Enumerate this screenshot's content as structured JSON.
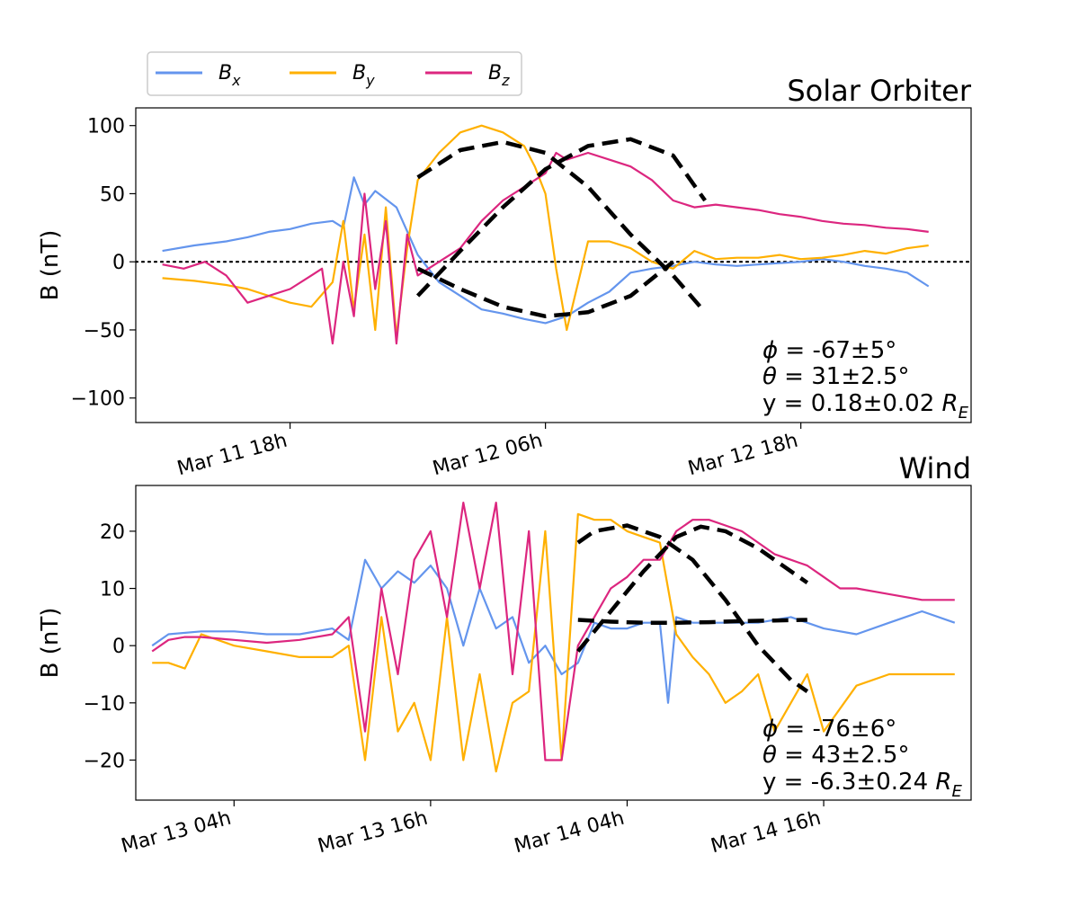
{
  "legend": {
    "items": [
      {
        "label": "Bx",
        "main": "B",
        "sub": "x",
        "color": "#6495ED"
      },
      {
        "label": "By",
        "main": "B",
        "sub": "y",
        "color": "#FFB000"
      },
      {
        "label": "Bz",
        "main": "B",
        "sub": "z",
        "color": "#DC267F"
      }
    ],
    "location": "top-left, above top panel"
  },
  "chart_data": [
    {
      "type": "line",
      "title": "Solar Orbiter",
      "xlabel": "",
      "ylabel": "B (nT)",
      "xlim": [
        10.75,
        50.0
      ],
      "ylim": [
        -118,
        113
      ],
      "x_ticks": [
        {
          "x": 18,
          "label": "Mar 11 18h"
        },
        {
          "x": 30,
          "label": "Mar 12 06h"
        },
        {
          "x": 42,
          "label": "Mar 12 18h"
        }
      ],
      "y_ticks": [
        {
          "y": 100,
          "label": "100"
        },
        {
          "y": 50,
          "label": "50"
        },
        {
          "y": 0,
          "label": "0"
        },
        {
          "y": -50,
          "label": "−50"
        },
        {
          "y": -100,
          "label": "−100"
        }
      ],
      "zero_line": true,
      "series": [
        {
          "name": "Bx",
          "color": "#6495ED",
          "x": [
            12,
            13.5,
            15,
            16,
            17,
            18,
            19,
            20,
            20.5,
            21,
            21.5,
            22,
            23,
            24,
            25,
            26,
            27,
            28,
            29,
            30,
            31,
            32,
            33,
            34,
            35,
            36,
            37,
            38,
            39,
            40,
            41,
            42,
            43,
            44,
            45,
            46,
            47,
            48
          ],
          "y": [
            8,
            12,
            15,
            18,
            22,
            24,
            28,
            30,
            25,
            62,
            42,
            52,
            40,
            5,
            -15,
            -25,
            -35,
            -38,
            -42,
            -45,
            -40,
            -30,
            -22,
            -8,
            -5,
            -3,
            0,
            -2,
            -3,
            -2,
            -1,
            0,
            2,
            0,
            -3,
            -5,
            -8,
            -18
          ]
        },
        {
          "name": "By",
          "color": "#FFB000",
          "x": [
            12,
            13.5,
            15,
            16,
            17,
            18,
            19,
            20,
            20.5,
            21,
            21.5,
            22,
            22.5,
            23,
            23.5,
            24,
            25,
            26,
            27,
            28,
            29,
            29.5,
            30,
            30.5,
            31,
            32,
            33,
            34,
            35,
            36,
            37,
            38,
            39,
            40,
            41,
            42,
            43,
            44,
            45,
            46,
            47,
            48
          ],
          "y": [
            -12,
            -14,
            -17,
            -20,
            -25,
            -30,
            -33,
            -15,
            30,
            -35,
            20,
            -50,
            40,
            -55,
            10,
            60,
            80,
            95,
            100,
            95,
            85,
            70,
            50,
            -5,
            -50,
            15,
            15,
            10,
            0,
            -5,
            8,
            2,
            3,
            3,
            5,
            2,
            3,
            5,
            8,
            6,
            10,
            12
          ]
        },
        {
          "name": "Bz",
          "color": "#DC267F",
          "x": [
            12,
            13,
            14,
            15,
            16,
            17,
            18,
            19,
            19.5,
            20,
            20.5,
            21,
            21.5,
            22,
            22.5,
            23,
            23.5,
            24,
            25,
            26,
            27,
            28,
            29,
            30,
            30.5,
            31,
            32,
            33,
            34,
            35,
            36,
            37,
            38,
            39,
            40,
            41,
            42,
            43,
            44,
            45,
            46,
            47,
            48
          ],
          "y": [
            -2,
            -5,
            0,
            -10,
            -30,
            -25,
            -20,
            -10,
            -5,
            -60,
            0,
            -40,
            50,
            -20,
            30,
            -60,
            20,
            -10,
            0,
            10,
            30,
            45,
            55,
            65,
            80,
            75,
            80,
            75,
            70,
            60,
            45,
            40,
            42,
            40,
            38,
            35,
            33,
            30,
            28,
            27,
            25,
            24,
            22
          ]
        },
        {
          "name": "Bx fit",
          "color": "#000000",
          "dashed": true,
          "x": [
            24,
            26,
            28,
            30,
            32,
            34,
            36
          ],
          "y": [
            -5,
            -20,
            -33,
            -40,
            -37,
            -25,
            0
          ]
        },
        {
          "name": "By fit",
          "color": "#000000",
          "dashed": true,
          "x": [
            24,
            26,
            28,
            30,
            32,
            34,
            36,
            37.5
          ],
          "y": [
            62,
            82,
            88,
            80,
            55,
            20,
            -10,
            -37
          ]
        },
        {
          "name": "Bz fit",
          "color": "#000000",
          "dashed": true,
          "x": [
            24,
            26,
            28,
            30,
            32,
            34,
            36,
            37.5
          ],
          "y": [
            -25,
            8,
            40,
            68,
            85,
            90,
            78,
            45
          ]
        }
      ],
      "annotations": [
        "ϕ = -67±5°",
        "θ = 31±2.5°",
        "y = 0.18±0.02 R_E"
      ]
    },
    {
      "type": "line",
      "title": "Wind",
      "xlabel": "",
      "ylabel": "B (nT)",
      "xlim": [
        -2.0,
        49.0
      ],
      "ylim": [
        -27,
        28
      ],
      "x_ticks": [
        {
          "x": 4,
          "label": "Mar 13 04h"
        },
        {
          "x": 16,
          "label": "Mar 13 16h"
        },
        {
          "x": 28,
          "label": "Mar 14 04h"
        },
        {
          "x": 40,
          "label": "Mar 14 16h"
        }
      ],
      "y_ticks": [
        {
          "y": 20,
          "label": "20"
        },
        {
          "y": 10,
          "label": "10"
        },
        {
          "y": 0,
          "label": "0"
        },
        {
          "y": -10,
          "label": "−10"
        },
        {
          "y": -20,
          "label": "−20"
        }
      ],
      "zero_line": false,
      "series": [
        {
          "name": "Bx",
          "color": "#6495ED",
          "x": [
            -1,
            0,
            2,
            4,
            6,
            8,
            10,
            11,
            12,
            13,
            14,
            15,
            16,
            17,
            18,
            19,
            20,
            21,
            22,
            23,
            24,
            25,
            26,
            27,
            28,
            29,
            30,
            30.5,
            31,
            32,
            34,
            36,
            38,
            40,
            42,
            44,
            46,
            48
          ],
          "y": [
            0,
            2,
            2.5,
            2.5,
            2,
            2,
            3,
            1,
            15,
            10,
            13,
            11,
            14,
            10,
            0,
            10,
            3,
            5,
            -3,
            0,
            -5,
            -3,
            4,
            3,
            3,
            4,
            4,
            -10,
            5,
            4,
            4,
            4,
            5,
            3,
            2,
            4,
            6,
            4
          ]
        },
        {
          "name": "By",
          "color": "#FFB000",
          "x": [
            -1,
            0,
            1,
            2,
            4,
            6,
            8,
            10,
            11,
            12,
            13,
            14,
            15,
            16,
            17,
            18,
            19,
            20,
            21,
            22,
            23,
            24,
            25,
            26,
            27,
            28,
            29,
            30,
            31,
            32,
            33,
            34,
            35,
            36,
            37,
            38,
            39,
            40,
            42,
            44,
            46,
            48
          ],
          "y": [
            -3,
            -3,
            -4,
            2,
            0,
            -1,
            -2,
            -2,
            0,
            -20,
            5,
            -15,
            -10,
            -20,
            5,
            -20,
            -5,
            -22,
            -10,
            -8,
            20,
            -20,
            23,
            22,
            22,
            20,
            19,
            18,
            2,
            -2,
            -5,
            -10,
            -8,
            -5,
            -15,
            -10,
            -5,
            -15,
            -7,
            -5,
            -5,
            -5
          ]
        },
        {
          "name": "Bz",
          "color": "#DC267F",
          "x": [
            -1,
            0,
            1,
            2,
            4,
            6,
            8,
            10,
            11,
            12,
            13,
            14,
            15,
            16,
            17,
            18,
            19,
            20,
            21,
            22,
            23,
            24,
            25,
            26,
            27,
            28,
            29,
            30,
            31,
            32,
            33,
            34,
            35,
            36,
            37,
            38,
            39,
            40,
            41,
            42,
            44,
            46,
            48
          ],
          "y": [
            -1,
            1,
            1.5,
            1.5,
            1,
            0.5,
            1,
            2,
            5,
            -15,
            10,
            -5,
            15,
            20,
            5,
            25,
            10,
            25,
            -5,
            20,
            -20,
            -20,
            0,
            5,
            10,
            12,
            15,
            15,
            20,
            22,
            22,
            21,
            20,
            18,
            16,
            15,
            14,
            12,
            10,
            10,
            9,
            8,
            8
          ]
        },
        {
          "name": "Bx fit",
          "color": "#000000",
          "dashed": true,
          "x": [
            25,
            27,
            29,
            31,
            33,
            35,
            37,
            39
          ],
          "y": [
            4.5,
            4.2,
            4.0,
            4.0,
            4.1,
            4.3,
            4.4,
            4.5
          ]
        },
        {
          "name": "By fit",
          "color": "#000000",
          "dashed": true,
          "x": [
            25,
            26,
            28,
            30,
            32,
            34,
            36,
            38,
            39
          ],
          "y": [
            18,
            20,
            21,
            19,
            15,
            8,
            0,
            -6,
            -8
          ]
        },
        {
          "name": "Bz fit",
          "color": "#000000",
          "dashed": true,
          "x": [
            25,
            27,
            29,
            31,
            32.5,
            34,
            36,
            38,
            39
          ],
          "y": [
            -1,
            6,
            13,
            19,
            20.8,
            20,
            17,
            13,
            11
          ]
        }
      ],
      "annotations": [
        "ϕ = -76±6°",
        "θ = 43±2.5°",
        "y = -6.3±0.24 R_E"
      ]
    }
  ]
}
